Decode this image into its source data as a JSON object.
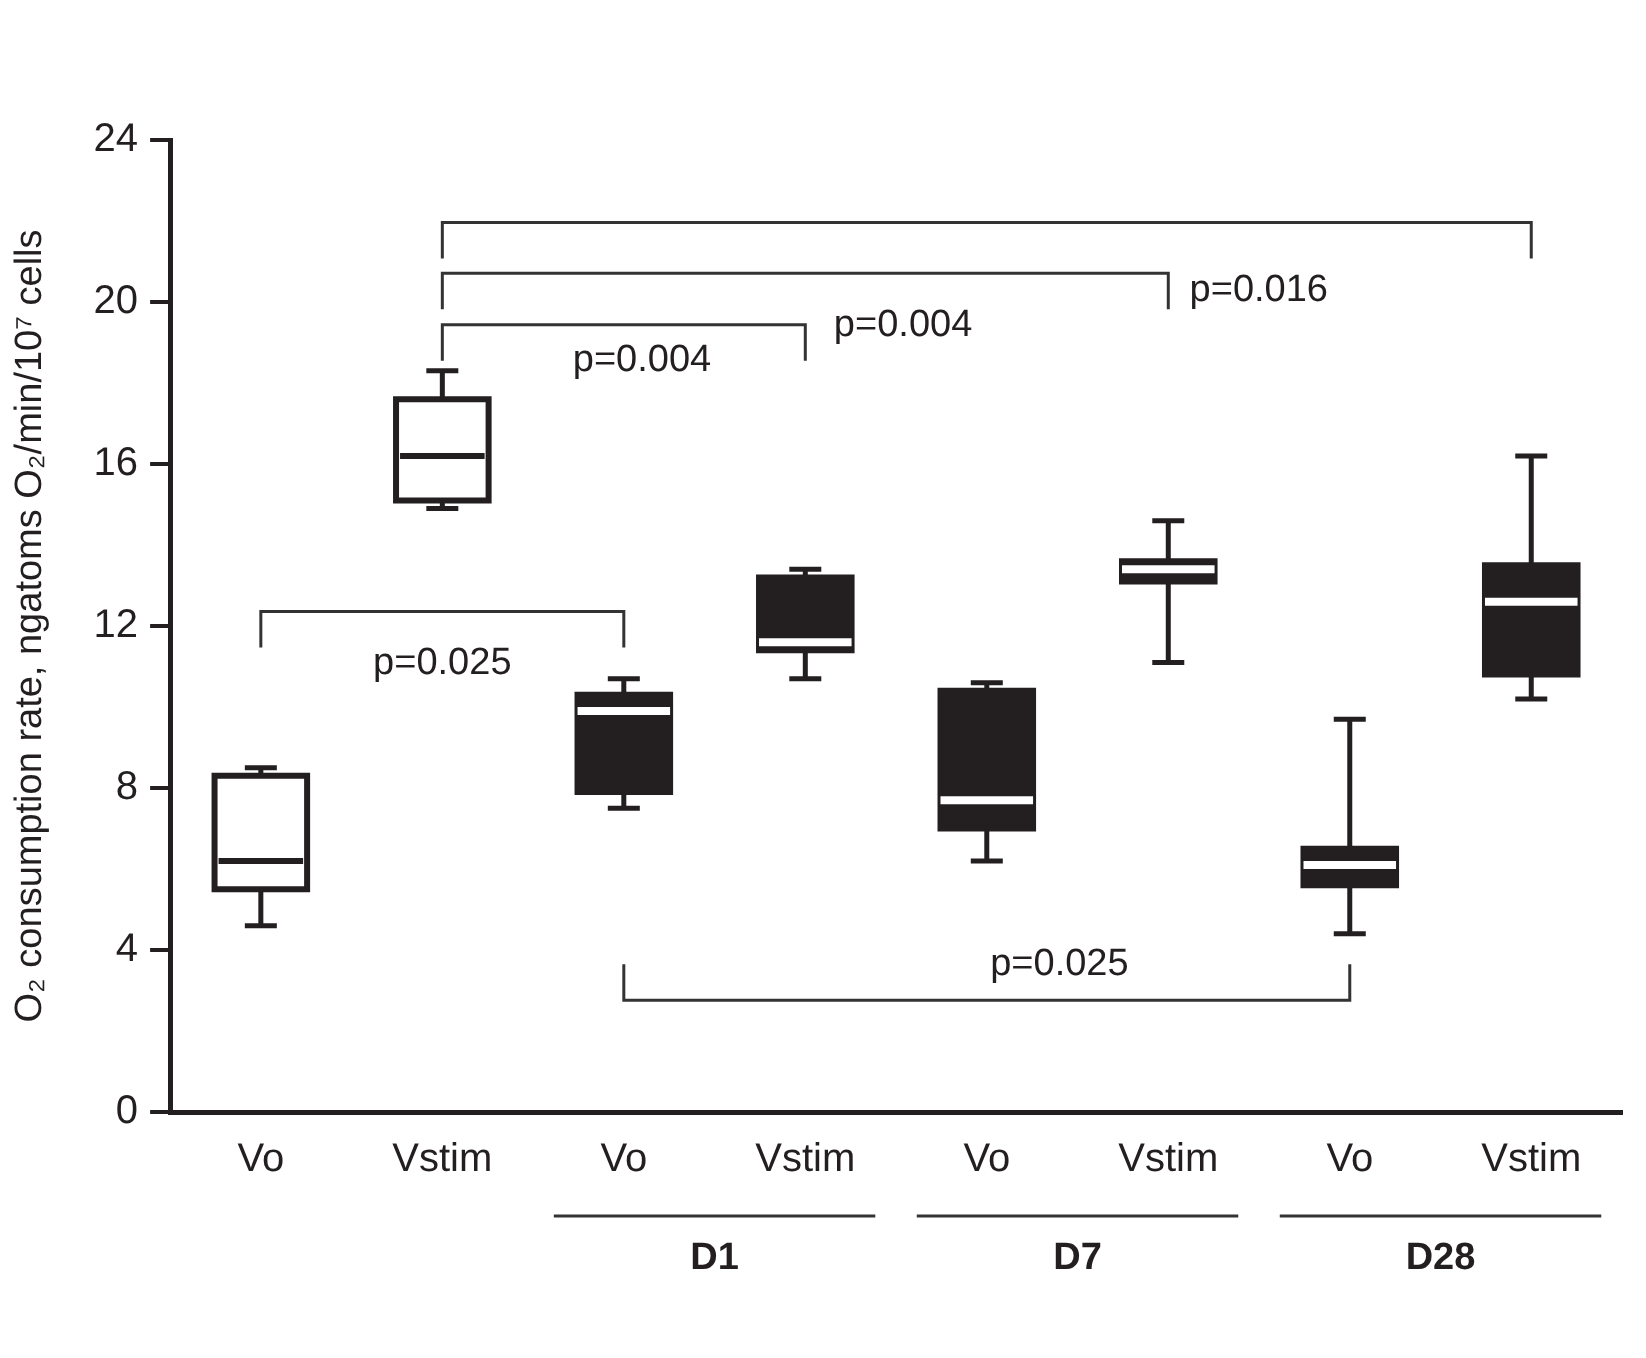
{
  "chart_data": {
    "type": "box",
    "ylabel": "O₂ consumption rate, ngatoms O₂/min/10⁷ cells",
    "categories": [
      "Vo",
      "Vstim",
      "Vo",
      "Vstim",
      "Vo",
      "Vstim",
      "Vo",
      "Vstim"
    ],
    "boxes": [
      {
        "low": 4.6,
        "q1": 5.5,
        "median": 6.2,
        "q3": 8.3,
        "high": 8.5
      },
      {
        "low": 14.9,
        "q1": 15.1,
        "median": 16.2,
        "q3": 17.6,
        "high": 18.3
      },
      {
        "low": 7.5,
        "q1": 7.9,
        "median": 9.9,
        "q3": 10.3,
        "high": 10.7
      },
      {
        "low": 10.7,
        "q1": 11.4,
        "median": 11.6,
        "q3": 13.2,
        "high": 13.4
      },
      {
        "low": 6.2,
        "q1": 7.0,
        "median": 7.7,
        "q3": 10.4,
        "high": 10.6
      },
      {
        "low": 11.1,
        "q1": 13.1,
        "median": 13.4,
        "q3": 13.6,
        "high": 14.6
      },
      {
        "low": 4.4,
        "q1": 5.6,
        "median": 6.1,
        "q3": 6.5,
        "high": 9.7
      },
      {
        "low": 10.2,
        "q1": 10.8,
        "median": 12.6,
        "q3": 13.5,
        "high": 16.2
      }
    ],
    "colors": [
      "#ffffff",
      "#ffffff",
      "#231f20",
      "#231f20",
      "#231f20",
      "#231f20",
      "#231f20",
      "#231f20"
    ],
    "ylim": [
      0,
      24
    ],
    "yticks": [
      0,
      4,
      8,
      12,
      16,
      20,
      24
    ],
    "grid": false,
    "legend": false,
    "annotations": [
      "p=0.004",
      "p=0.004",
      "p=0.016",
      "p=0.025",
      "p=0.025",
      "D1",
      "D7",
      "D28"
    ]
  }
}
